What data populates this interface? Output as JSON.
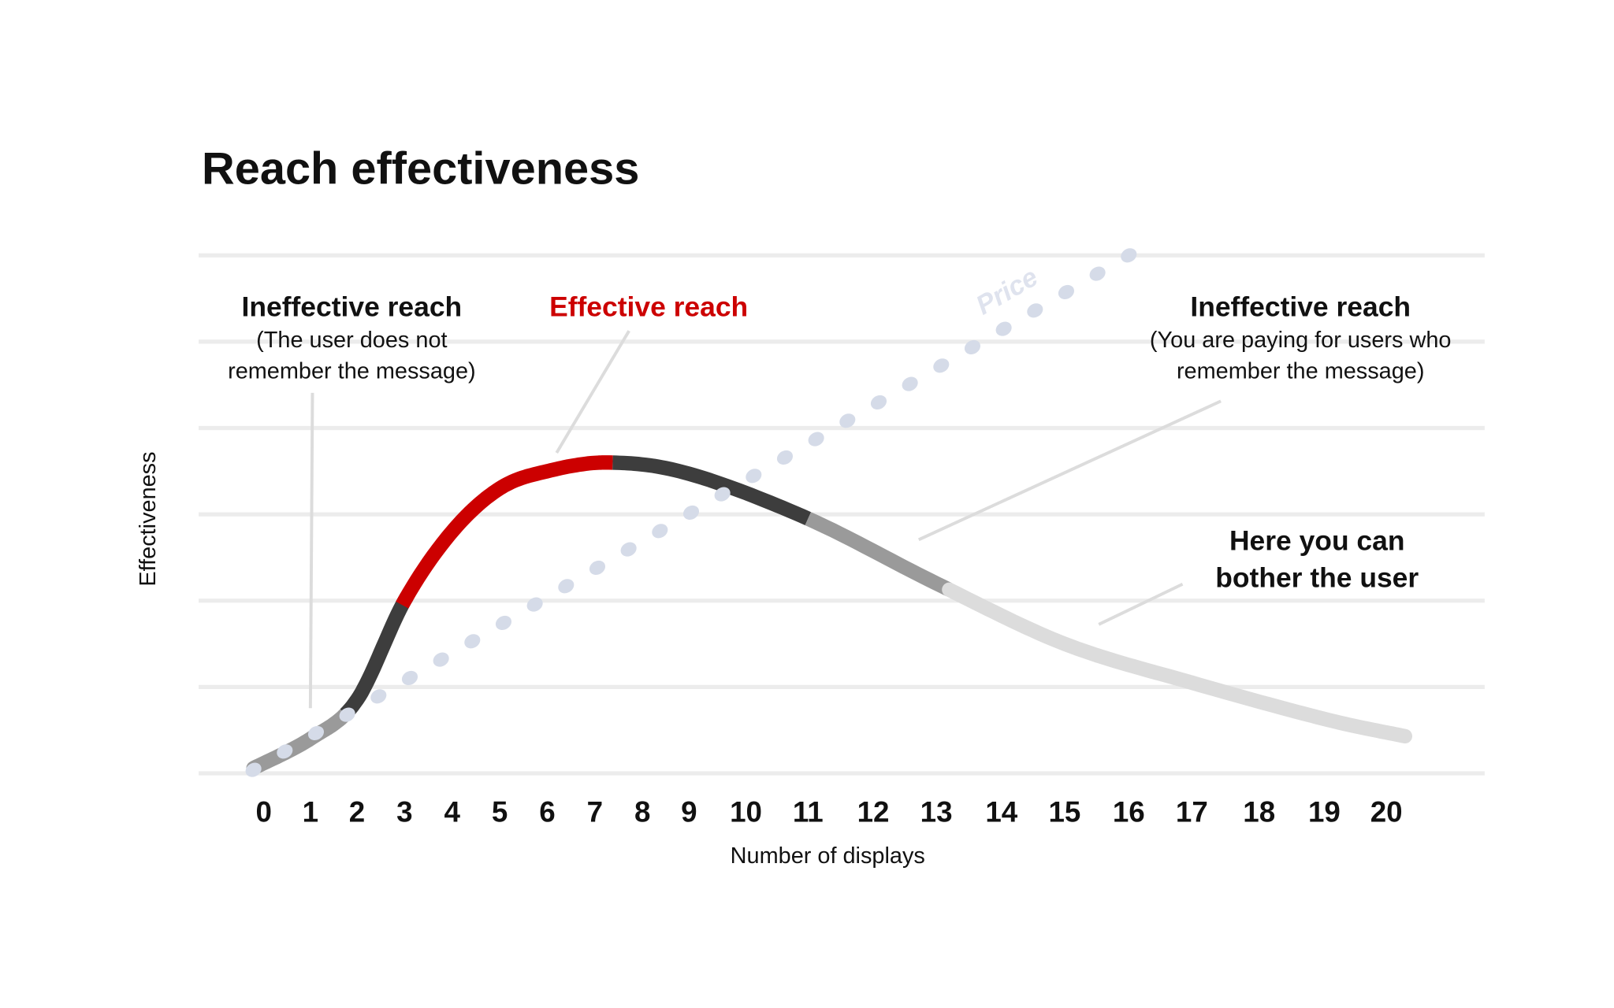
{
  "chart_data": {
    "type": "line",
    "title": "Reach effectiveness",
    "xlabel": "Number of displays",
    "ylabel": "Effectiveness",
    "x_ticks": [
      "0",
      "1",
      "2",
      "3",
      "4",
      "5",
      "6",
      "7",
      "8",
      "9",
      "10",
      "11",
      "12",
      "13",
      "14",
      "15",
      "16",
      "17",
      "18",
      "19",
      "20"
    ],
    "xlim": [
      0,
      20
    ],
    "grid": "horizontal",
    "series": [
      {
        "role": "effectiveness curve",
        "x": [
          -0.2,
          1,
          2,
          3,
          4,
          5,
          6,
          7.3,
          9,
          11,
          13,
          15,
          17,
          19,
          20.3
        ],
        "y": [
          0.06,
          0.4,
          0.85,
          2.0,
          2.8,
          3.3,
          3.5,
          3.6,
          3.47,
          2.95,
          2.2,
          1.5,
          1.05,
          0.63,
          0.43
        ],
        "segments": [
          {
            "from": -0.2,
            "to": 1.8,
            "color": "#9a9a9a"
          },
          {
            "from": 1.8,
            "to": 3.0,
            "color": "#3d3d3d"
          },
          {
            "from": 3.0,
            "to": 7.4,
            "color": "#cc0000"
          },
          {
            "from": 7.4,
            "to": 11.0,
            "color": "#3d3d3d"
          },
          {
            "from": 11.0,
            "to": 13.2,
            "color": "#9a9a9a"
          },
          {
            "from": 13.2,
            "to": 20.3,
            "color": "#dcdcdc"
          }
        ]
      },
      {
        "name": "Price",
        "style": "dotted",
        "color": "#d5dbe8",
        "x": [
          -0.2,
          16
        ],
        "y": [
          0.04,
          6.0
        ]
      }
    ],
    "annotations": {
      "left": {
        "title": "Ineffective reach",
        "lines": [
          "(The user does not",
          "remember the message)"
        ]
      },
      "center": {
        "title": "Effective reach",
        "color": "#cc0000"
      },
      "right": {
        "title": "Ineffective reach",
        "lines": [
          "(You are paying for users who",
          "remember the message)"
        ]
      },
      "bother": {
        "lines": [
          "Here you can",
          "bother the user"
        ]
      }
    }
  }
}
